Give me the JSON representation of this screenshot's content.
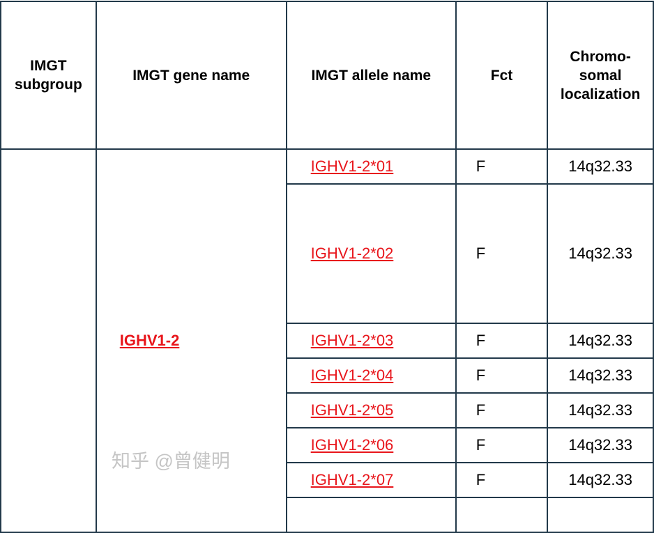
{
  "headers": [
    "IMGT subgroup",
    "IMGT gene name",
    "IMGT allele name",
    "Fct",
    "Chromo-somal localization"
  ],
  "header_lines": {
    "subgroup": [
      "IMGT",
      "subgroup"
    ],
    "gene": "IMGT gene name",
    "allele": "IMGT allele name",
    "fct": "Fct",
    "loc": [
      "Chromo-",
      "somal",
      "localization"
    ]
  },
  "subgroup": "",
  "gene": "IGHV1-2",
  "rows": [
    {
      "allele": "IGHV1-2*01",
      "fct": "F",
      "loc": "14q32.33"
    },
    {
      "allele": "IGHV1-2*02",
      "fct": "F",
      "loc": "14q32.33"
    },
    {
      "allele": "IGHV1-2*03",
      "fct": "F",
      "loc": "14q32.33"
    },
    {
      "allele": "IGHV1-2*04",
      "fct": "F",
      "loc": "14q32.33"
    },
    {
      "allele": "IGHV1-2*05",
      "fct": "F",
      "loc": "14q32.33"
    },
    {
      "allele": "IGHV1-2*06",
      "fct": "F",
      "loc": "14q32.33"
    },
    {
      "allele": "IGHV1-2*07",
      "fct": "F",
      "loc": "14q32.33"
    }
  ],
  "colors": {
    "link": "#e8151b",
    "border": "#22394a"
  },
  "watermark": "知乎 @曾健明"
}
